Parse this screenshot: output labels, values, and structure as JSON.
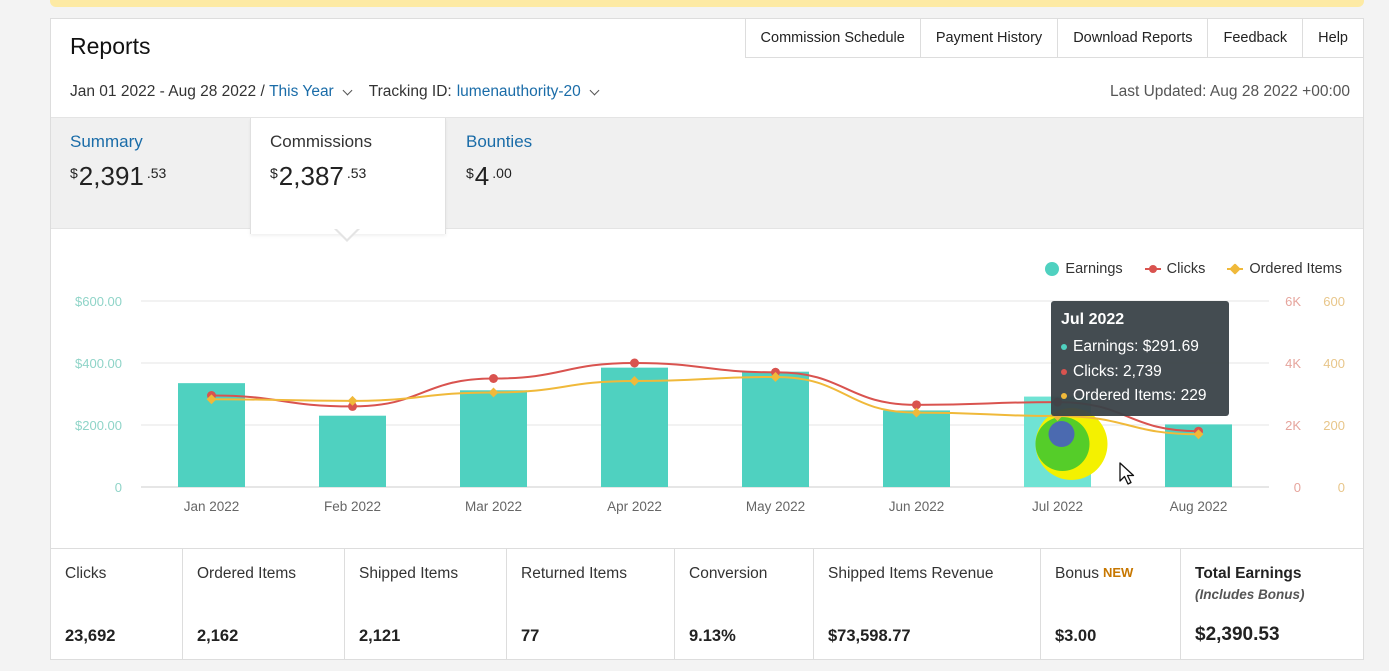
{
  "header": {
    "title": "Reports",
    "links": [
      "Commission Schedule",
      "Payment History",
      "Download Reports",
      "Feedback",
      "Help"
    ]
  },
  "filters": {
    "date_range": "Jan 01 2022 - Aug 28 2022",
    "separator": " / ",
    "period": "This Year",
    "tracking_label": "Tracking ID:",
    "tracking_id": "lumenauthority-20",
    "last_updated": "Last Updated: Aug 28 2022 +00:00"
  },
  "tabs": [
    {
      "label": "Summary",
      "symbol": "$",
      "whole": "2,391",
      "cents": ".53",
      "active": false
    },
    {
      "label": "Commissions",
      "symbol": "$",
      "whole": "2,387",
      "cents": ".53",
      "active": true
    },
    {
      "label": "Bounties",
      "symbol": "$",
      "whole": "4",
      "cents": ".00",
      "active": false
    }
  ],
  "legend": [
    {
      "label": "Earnings",
      "color": "#4fd1c0"
    },
    {
      "label": "Clicks",
      "color": "#d9534f"
    },
    {
      "label": "Ordered Items",
      "color": "#f0b93a"
    }
  ],
  "tooltip": {
    "title": "Jul 2022",
    "rows": [
      "Earnings: $291.69",
      "Clicks: 2,739",
      "Ordered Items: 229"
    ]
  },
  "chart_data": {
    "type": "bar",
    "categories": [
      "Jan 2022",
      "Feb 2022",
      "Mar 2022",
      "Apr 2022",
      "May 2022",
      "Jun 2022",
      "Jul 2022",
      "Aug 2022"
    ],
    "series": [
      {
        "name": "Earnings",
        "type": "bar",
        "axis": "left",
        "values": [
          335,
          230,
          312,
          385,
          372,
          247,
          291.69,
          202
        ]
      },
      {
        "name": "Clicks",
        "type": "line",
        "axis": "right1",
        "values": [
          2950,
          2600,
          3500,
          4000,
          3700,
          2650,
          2739,
          1800
        ]
      },
      {
        "name": "Ordered Items",
        "type": "line",
        "axis": "right2",
        "values": [
          283,
          278,
          305,
          342,
          355,
          240,
          229,
          170
        ]
      }
    ],
    "left_axis": {
      "ticks": [
        "0",
        "$200.00",
        "$400.00",
        "$600.00"
      ],
      "range": [
        0,
        600
      ]
    },
    "right1_axis": {
      "ticks": [
        "0",
        "2K",
        "4K",
        "6K"
      ],
      "range": [
        0,
        6000
      ]
    },
    "right2_axis": {
      "ticks": [
        "0",
        "200",
        "400",
        "600"
      ],
      "range": [
        0,
        600
      ]
    },
    "highlight_index": 6,
    "grid": true,
    "legend_position": "top-right"
  },
  "stats": [
    {
      "label": "Clicks",
      "value": "23,692"
    },
    {
      "label": "Ordered Items",
      "value": "2,162"
    },
    {
      "label": "Shipped Items",
      "value": "2,121"
    },
    {
      "label": "Returned Items",
      "value": "77"
    },
    {
      "label": "Conversion",
      "value": "9.13%"
    },
    {
      "label": "Shipped Items Revenue",
      "value": "$73,598.77"
    },
    {
      "label": "Bonus",
      "badge": "NEW",
      "value": "$3.00"
    },
    {
      "label": "Total Earnings",
      "sub": "(Includes Bonus)",
      "value": "$2,390.53"
    }
  ]
}
